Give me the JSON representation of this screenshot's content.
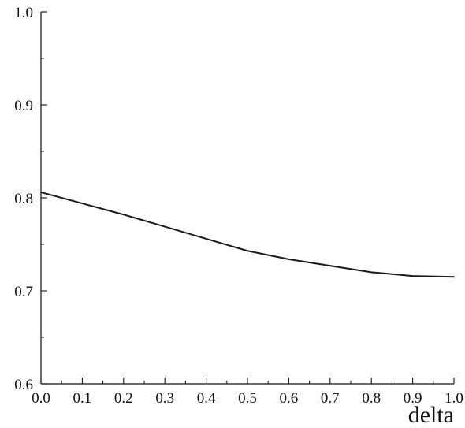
{
  "chart_data": {
    "type": "line",
    "title": "",
    "xlabel": "delta",
    "ylabel": "",
    "xlim": [
      0.0,
      1.0
    ],
    "ylim": [
      0.6,
      1.0
    ],
    "grid": false,
    "x_ticks": [
      "0.0",
      "0.1",
      "0.2",
      "0.3",
      "0.4",
      "0.5",
      "0.6",
      "0.7",
      "0.8",
      "0.9",
      "1.0"
    ],
    "y_ticks": [
      "0.6",
      "0.7",
      "0.8",
      "0.9",
      "1.0"
    ],
    "series": [
      {
        "x": [
          0.0,
          0.1,
          0.2,
          0.3,
          0.4,
          0.5,
          0.6,
          0.7,
          0.8,
          0.9,
          1.0
        ],
        "y": [
          0.806,
          0.794,
          0.782,
          0.769,
          0.756,
          0.743,
          0.734,
          0.727,
          0.72,
          0.716,
          0.715
        ],
        "color": "#1a1a1a"
      }
    ]
  }
}
